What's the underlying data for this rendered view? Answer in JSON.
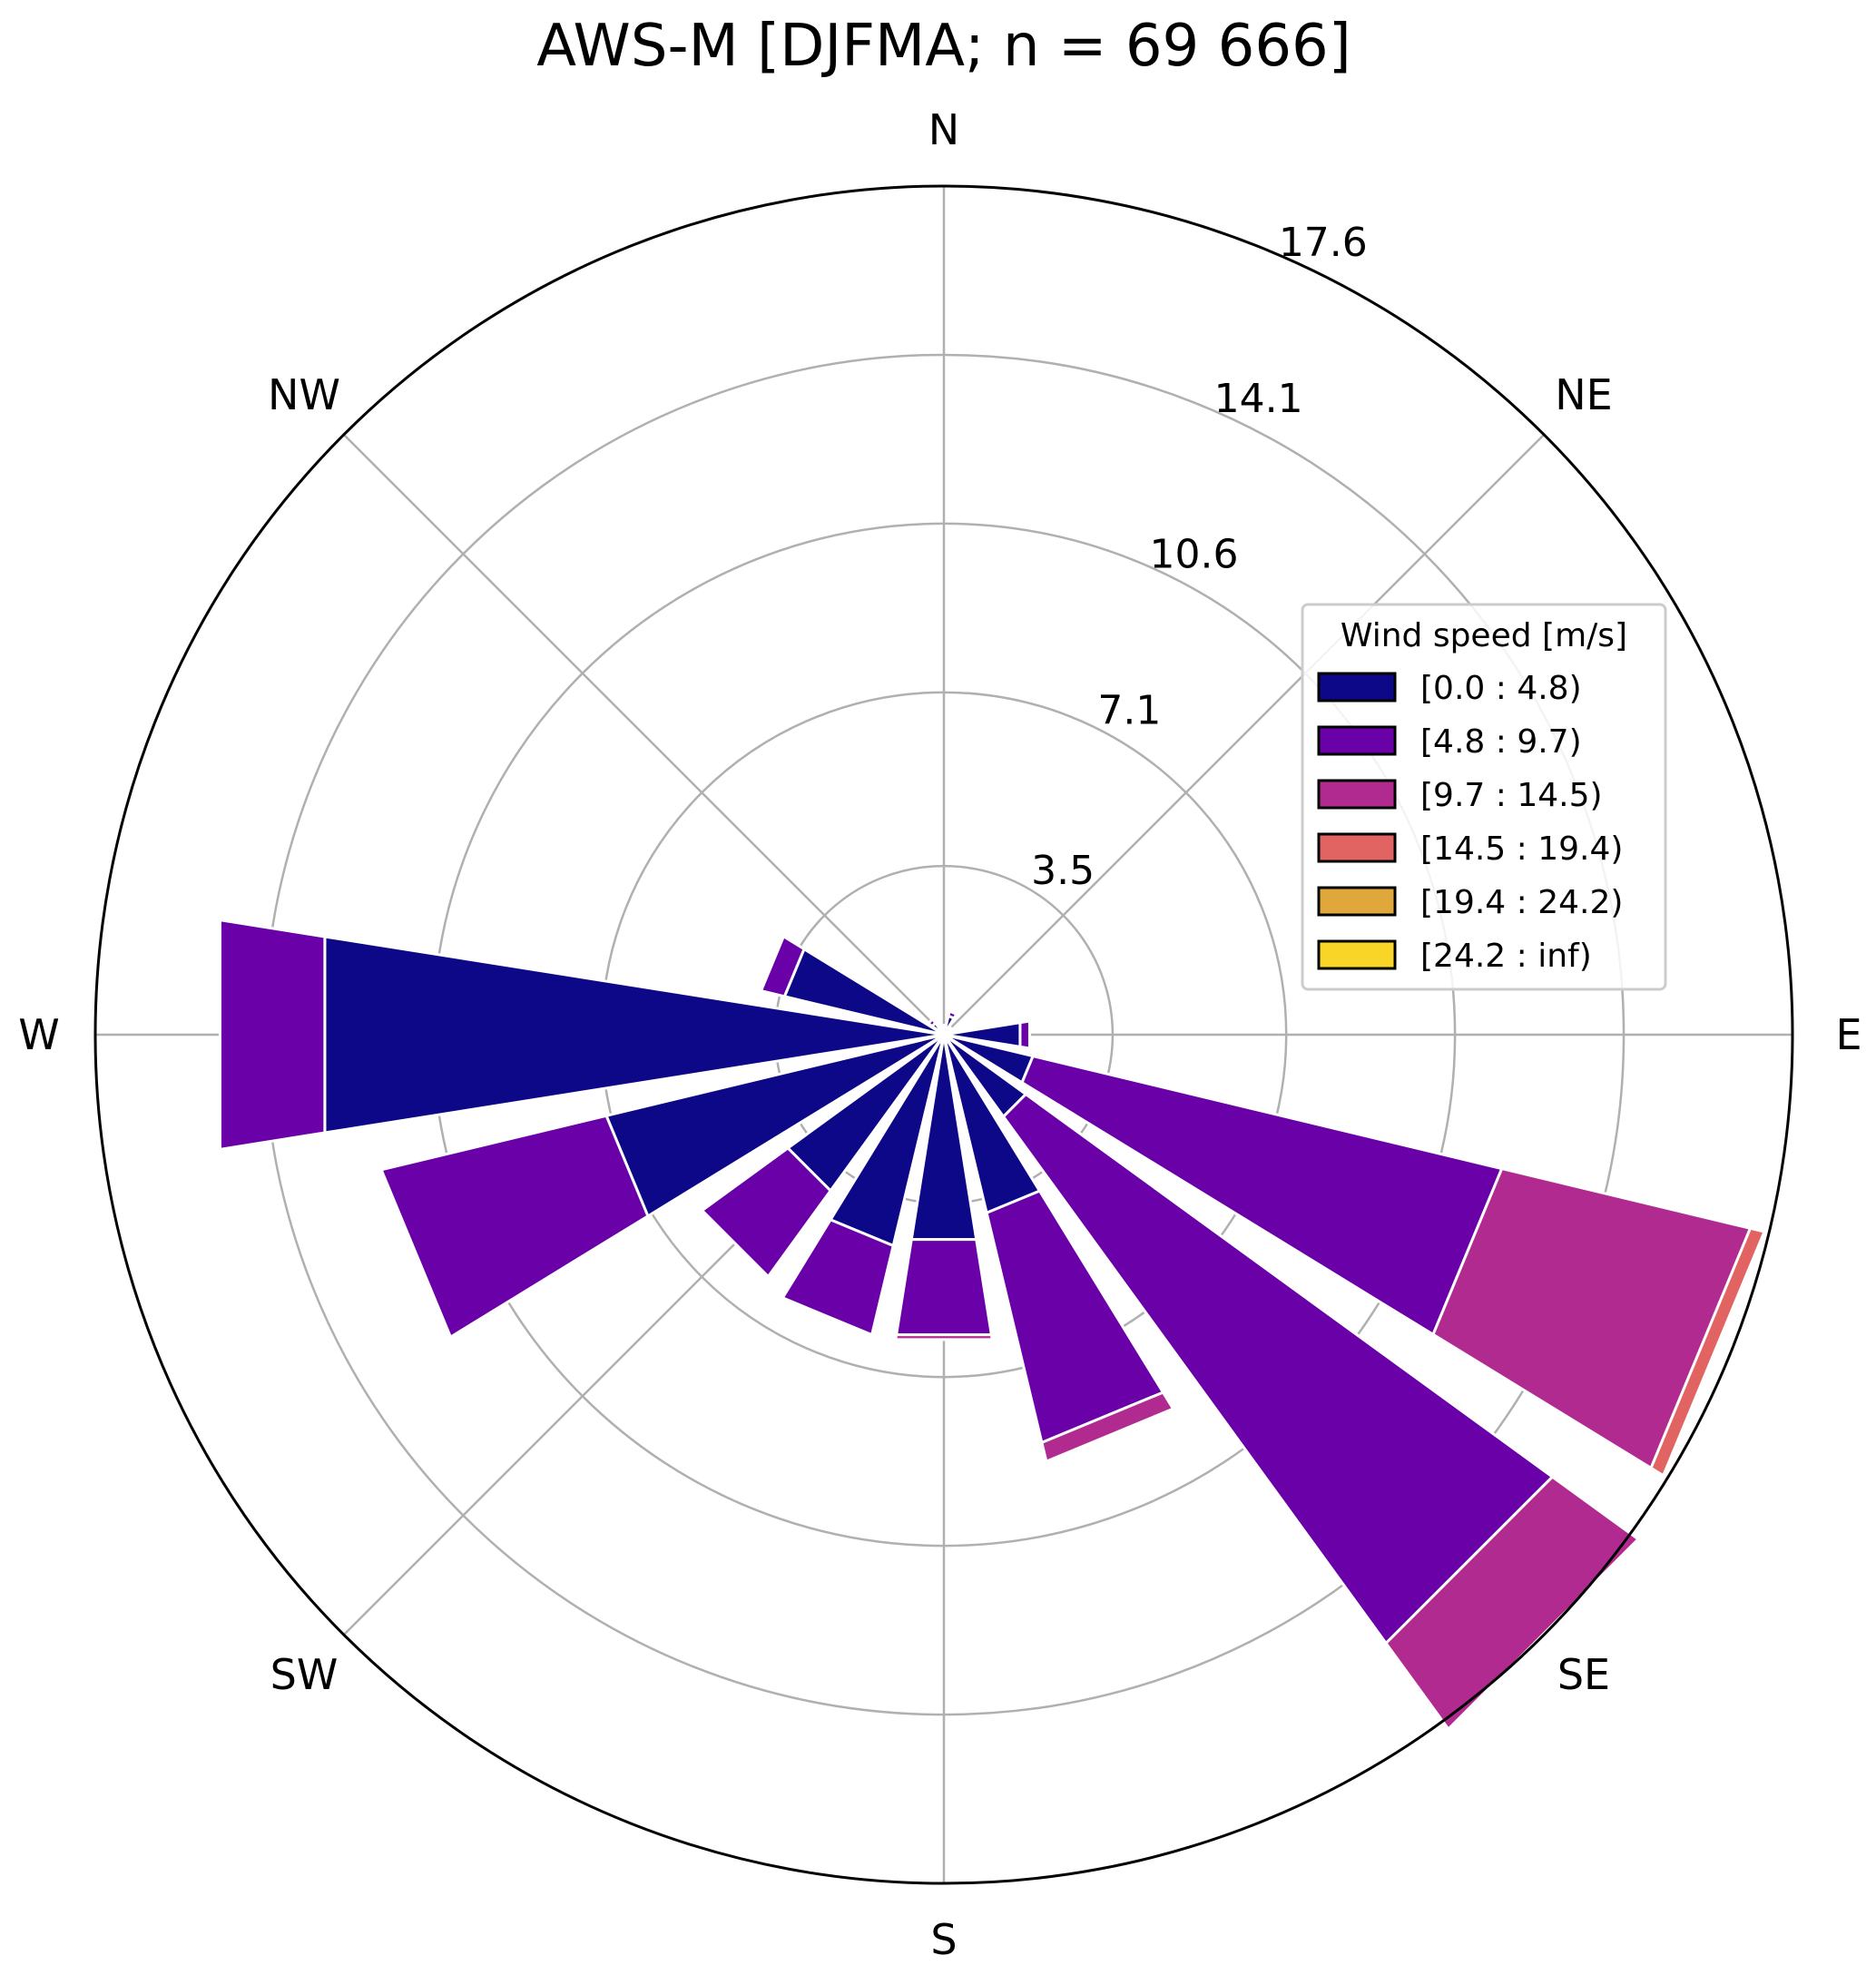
{
  "chart_data": {
    "type": "windrose",
    "title": "AWS-M [DJFMA; n = 69 666]",
    "rmax": 17.6,
    "radial_ticks": [
      3.5,
      7.1,
      10.6,
      14.1,
      17.6
    ],
    "radial_tick_labels": [
      "3.5",
      "7.1",
      "10.6",
      "14.1",
      "17.6"
    ],
    "direction_labels": [
      "N",
      "NE",
      "E",
      "SE",
      "S",
      "SW",
      "W",
      "NW"
    ],
    "direction_angles_deg": [
      0,
      45,
      90,
      135,
      180,
      225,
      270,
      315
    ],
    "sector_width_deg": 22.5,
    "legend": {
      "title": "Wind speed [m/s]",
      "placement": "right",
      "entries": [
        {
          "label": "[0.0 : 4.8)",
          "color": "#0d0887"
        },
        {
          "label": "[4.8 : 9.7)",
          "color": "#6a00a8"
        },
        {
          "label": "[9.7 : 14.5)",
          "color": "#b12a90"
        },
        {
          "label": "[14.5 : 19.4)",
          "color": "#e16462"
        },
        {
          "label": "[19.4 : 24.2)",
          "color": "#e0a83a"
        },
        {
          "label": "[24.2 : inf)",
          "color": "#f8d527"
        }
      ]
    },
    "sectors": [
      {
        "direction_deg": 0,
        "cumulative": [
          0.2
        ]
      },
      {
        "direction_deg": 22.5,
        "cumulative": [
          0.4,
          0.5
        ]
      },
      {
        "direction_deg": 45,
        "cumulative": [
          0.2
        ]
      },
      {
        "direction_deg": 67.5,
        "cumulative": [
          0.2
        ]
      },
      {
        "direction_deg": 90,
        "cumulative": [
          1.6,
          1.8
        ]
      },
      {
        "direction_deg": 112.5,
        "cumulative": [
          1.9,
          11.9,
          17.2,
          17.5
        ]
      },
      {
        "direction_deg": 135,
        "cumulative": [
          2.1,
          15.6,
          17.8
        ]
      },
      {
        "direction_deg": 157.5,
        "cumulative": [
          3.8,
          8.7,
          9.1
        ]
      },
      {
        "direction_deg": 180,
        "cumulative": [
          4.3,
          6.3,
          6.4
        ]
      },
      {
        "direction_deg": 202.5,
        "cumulative": [
          4.5,
          6.4
        ]
      },
      {
        "direction_deg": 225,
        "cumulative": [
          4.0,
          6.2
        ]
      },
      {
        "direction_deg": 247.5,
        "cumulative": [
          7.2,
          12.0
        ]
      },
      {
        "direction_deg": 270,
        "cumulative": [
          13.0,
          15.2
        ]
      },
      {
        "direction_deg": 292.5,
        "cumulative": [
          3.4,
          3.9
        ]
      },
      {
        "direction_deg": 315,
        "cumulative": [
          0.3,
          0.4
        ]
      },
      {
        "direction_deg": 337.5,
        "cumulative": [
          0.1
        ]
      }
    ]
  }
}
